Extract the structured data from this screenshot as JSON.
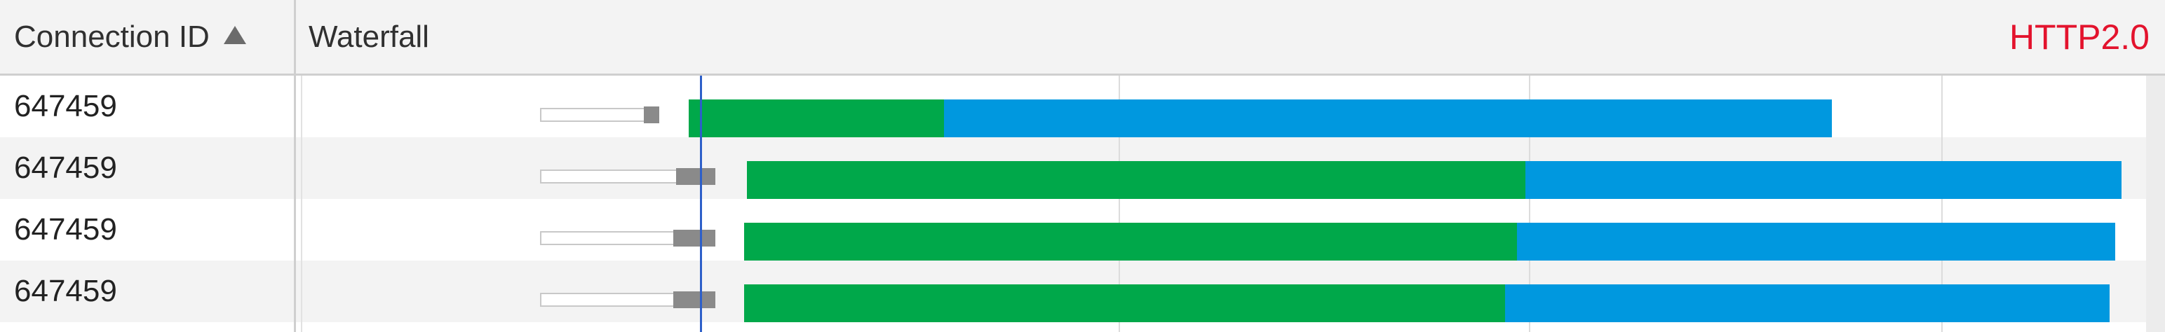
{
  "header": {
    "connection_id_label": "Connection ID",
    "waterfall_label": "Waterfall",
    "protocol_label": "HTTP2.0",
    "sort_icon": "triangle-up-icon",
    "protocol_color": "#e3132d"
  },
  "rows": [
    {
      "connection_id": "647459"
    },
    {
      "connection_id": "647459"
    },
    {
      "connection_id": "647459"
    },
    {
      "connection_id": "647459"
    }
  ],
  "colors": {
    "content_download": "#0098df",
    "waiting_ttfb": "#00a84a",
    "stalled": "#8a8a8a",
    "queued_border": "#c8c8c8",
    "marker_line": "#2d5fc9"
  }
}
